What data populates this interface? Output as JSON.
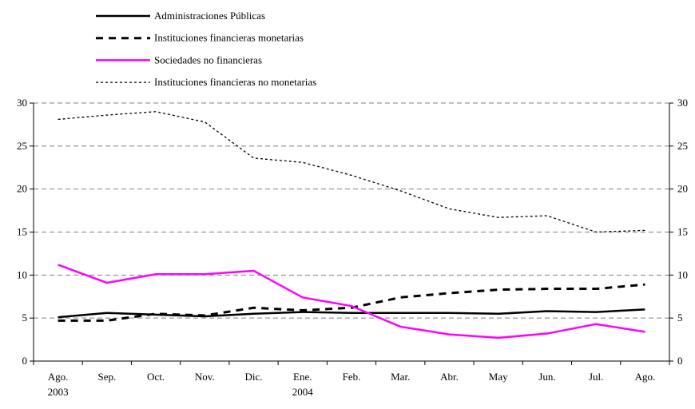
{
  "chart_data": {
    "type": "line",
    "categories": [
      "Ago. 2003",
      "Sep.",
      "Oct.",
      "Nov.",
      "Dic.",
      "Ene. 2004",
      "Feb.",
      "Mar.",
      "Abr.",
      "May",
      "Jun.",
      "Jul.",
      "Ago."
    ],
    "series": [
      {
        "name": "Administraciones Públicas",
        "color": "#000000",
        "style": "solid",
        "values": [
          5.1,
          5.6,
          5.4,
          5.2,
          5.5,
          5.7,
          5.6,
          5.6,
          5.6,
          5.5,
          5.8,
          5.7,
          6.0
        ]
      },
      {
        "name": "Instituciones financieras monetarias",
        "color": "#000000",
        "style": "dashed",
        "values": [
          4.7,
          4.7,
          5.5,
          5.3,
          6.2,
          5.9,
          6.2,
          7.4,
          7.9,
          8.3,
          8.4,
          8.4,
          8.9
        ]
      },
      {
        "name": "Sociedades no financieras",
        "color": "#ff00ff",
        "style": "solid",
        "values": [
          11.2,
          9.1,
          10.1,
          10.1,
          10.5,
          7.4,
          6.4,
          4.0,
          3.1,
          2.7,
          3.2,
          4.3,
          3.4
        ]
      },
      {
        "name": "Instituciones financieras no monetarias",
        "color": "#000000",
        "style": "dotted",
        "values": [
          28.1,
          28.6,
          29.0,
          27.8,
          23.6,
          23.1,
          21.6,
          19.8,
          17.7,
          16.7,
          16.9,
          15.0,
          15.2
        ]
      }
    ],
    "ylim": [
      0,
      30
    ],
    "yticks": [
      0,
      5,
      10,
      15,
      20,
      25,
      30
    ],
    "y2lim": [
      0,
      30
    ],
    "y2ticks": [
      0,
      5,
      10,
      15,
      20,
      25,
      30
    ],
    "grid": true,
    "legend": "top"
  }
}
